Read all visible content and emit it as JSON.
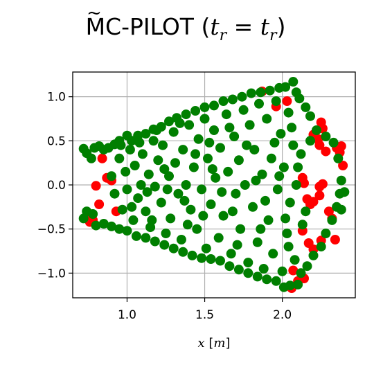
{
  "chart_data": {
    "type": "scatter",
    "title": {
      "prefix": "MC-PILOT (",
      "lhs": "t",
      "lhs_sub": "r",
      "eq": " = ",
      "rhs": "t",
      "rhs_sub": "r",
      "suffix": ")"
    },
    "xlabel": {
      "var": "x",
      "unit": "[m]"
    },
    "ylabel": "",
    "xlim": [
      0.65,
      2.47
    ],
    "ylim": [
      -1.28,
      1.28
    ],
    "xticks": [
      1.0,
      1.5,
      2.0
    ],
    "xtick_labels": [
      "1.0",
      "1.5",
      "2.0"
    ],
    "yticks": [
      1.0,
      0.5,
      0.0,
      -0.5,
      -1.0
    ],
    "ytick_labels": [
      "1.0",
      "0.5",
      "0.0",
      "−0.5",
      "−1.0"
    ],
    "grid": true,
    "legend": "none",
    "series": [
      {
        "color": "#ff0000",
        "points": [
          [
            0.75,
            -0.32
          ],
          [
            0.76,
            -0.42
          ],
          [
            0.78,
            -0.4
          ],
          [
            0.82,
            -0.22
          ],
          [
            0.8,
            -0.01
          ],
          [
            0.84,
            0.3
          ],
          [
            0.87,
            0.08
          ],
          [
            0.9,
            0.05
          ],
          [
            0.93,
            -0.3
          ],
          [
            1.87,
            1.06
          ],
          [
            1.96,
            0.89
          ],
          [
            2.03,
            0.95
          ],
          [
            2.2,
            0.57
          ],
          [
            2.23,
            0.52
          ],
          [
            2.25,
            0.71
          ],
          [
            2.26,
            0.64
          ],
          [
            2.24,
            0.45
          ],
          [
            2.28,
            0.38
          ],
          [
            2.35,
            0.42
          ],
          [
            2.37,
            0.37
          ],
          [
            2.38,
            0.44
          ],
          [
            2.39,
            0.22
          ],
          [
            2.14,
            0.02
          ],
          [
            2.13,
            0.08
          ],
          [
            2.16,
            -0.16
          ],
          [
            2.18,
            -0.22
          ],
          [
            2.2,
            -0.19
          ],
          [
            2.24,
            -0.02
          ],
          [
            2.26,
            0.01
          ],
          [
            2.24,
            -0.12
          ],
          [
            2.3,
            -0.3
          ],
          [
            2.32,
            -0.38
          ],
          [
            2.34,
            -0.62
          ],
          [
            2.13,
            -0.52
          ],
          [
            2.17,
            -0.66
          ],
          [
            2.2,
            -0.73
          ],
          [
            2.25,
            -0.63
          ],
          [
            2.07,
            -0.97
          ],
          [
            2.1,
            -1.09
          ],
          [
            2.14,
            -1.06
          ],
          [
            2.06,
            -1.17
          ]
        ]
      },
      {
        "color": "#007f00",
        "points": [
          [
            0.72,
            0.41
          ],
          [
            0.74,
            0.36
          ],
          [
            0.77,
            0.3
          ],
          [
            0.79,
            0.42
          ],
          [
            0.82,
            0.44
          ],
          [
            0.85,
            0.4
          ],
          [
            0.88,
            0.42
          ],
          [
            0.92,
            0.46
          ],
          [
            0.95,
            0.5
          ],
          [
            1.0,
            0.56
          ],
          [
            1.03,
            0.5
          ],
          [
            1.07,
            0.56
          ],
          [
            1.12,
            0.58
          ],
          [
            1.17,
            0.63
          ],
          [
            1.22,
            0.66
          ],
          [
            1.27,
            0.72
          ],
          [
            1.32,
            0.76
          ],
          [
            1.38,
            0.8
          ],
          [
            1.44,
            0.84
          ],
          [
            1.5,
            0.88
          ],
          [
            1.56,
            0.9
          ],
          [
            1.62,
            0.95
          ],
          [
            1.68,
            0.97
          ],
          [
            1.74,
            1.0
          ],
          [
            1.8,
            1.04
          ],
          [
            1.86,
            1.05
          ],
          [
            1.92,
            1.07
          ],
          [
            1.98,
            1.1
          ],
          [
            2.02,
            1.11
          ],
          [
            2.07,
            1.17
          ],
          [
            2.09,
            1.05
          ],
          [
            2.11,
            0.98
          ],
          [
            0.72,
            -0.38
          ],
          [
            0.74,
            -0.3
          ],
          [
            0.78,
            -0.33
          ],
          [
            0.8,
            -0.46
          ],
          [
            0.85,
            -0.44
          ],
          [
            0.9,
            -0.47
          ],
          [
            0.95,
            -0.5
          ],
          [
            1.0,
            -0.52
          ],
          [
            1.06,
            -0.58
          ],
          [
            1.12,
            -0.6
          ],
          [
            1.18,
            -0.64
          ],
          [
            1.24,
            -0.68
          ],
          [
            1.3,
            -0.72
          ],
          [
            1.36,
            -0.76
          ],
          [
            1.42,
            -0.8
          ],
          [
            1.48,
            -0.83
          ],
          [
            1.54,
            -0.84
          ],
          [
            1.6,
            -0.86
          ],
          [
            1.66,
            -0.92
          ],
          [
            1.72,
            -0.96
          ],
          [
            1.78,
            -1.0
          ],
          [
            1.84,
            -1.04
          ],
          [
            1.9,
            -1.07
          ],
          [
            1.96,
            -1.09
          ],
          [
            2.01,
            -1.16
          ],
          [
            2.05,
            -1.14
          ],
          [
            2.1,
            -1.13
          ],
          [
            2.15,
            0.88
          ],
          [
            2.18,
            0.78
          ],
          [
            2.22,
            0.62
          ],
          [
            2.28,
            0.55
          ],
          [
            2.33,
            0.48
          ],
          [
            2.36,
            0.3
          ],
          [
            2.38,
            0.05
          ],
          [
            2.37,
            -0.1
          ],
          [
            2.35,
            -0.25
          ],
          [
            2.32,
            -0.4
          ],
          [
            2.28,
            -0.55
          ],
          [
            2.25,
            -0.7
          ],
          [
            2.2,
            -0.8
          ],
          [
            2.16,
            -0.92
          ],
          [
            2.12,
            -1.0
          ],
          [
            2.1,
            0.2
          ],
          [
            2.12,
            0.35
          ],
          [
            2.15,
            -0.3
          ],
          [
            2.18,
            0.5
          ],
          [
            2.13,
            -0.45
          ],
          [
            2.4,
            -0.08
          ],
          [
            2.38,
            -0.28
          ],
          [
            0.9,
            0.1
          ],
          [
            0.92,
            -0.1
          ],
          [
            0.95,
            0.3
          ],
          [
            0.97,
            -0.28
          ],
          [
            0.99,
            0.15
          ],
          [
            1.0,
            -0.05
          ],
          [
            1.02,
            0.4
          ],
          [
            1.04,
            -0.4
          ],
          [
            1.05,
            0.22
          ],
          [
            1.07,
            -0.15
          ],
          [
            1.09,
            0.0
          ],
          [
            1.1,
            0.35
          ],
          [
            1.12,
            -0.3
          ],
          [
            1.14,
            0.12
          ],
          [
            1.15,
            -0.48
          ],
          [
            1.17,
            0.5
          ],
          [
            1.18,
            -0.02
          ],
          [
            1.2,
            0.28
          ],
          [
            1.22,
            -0.2
          ],
          [
            1.23,
            0.45
          ],
          [
            1.25,
            -0.55
          ],
          [
            1.27,
            0.1
          ],
          [
            1.28,
            -0.38
          ],
          [
            1.3,
            0.6
          ],
          [
            1.31,
            0.25
          ],
          [
            1.33,
            -0.1
          ],
          [
            1.35,
            -0.62
          ],
          [
            1.36,
            0.4
          ],
          [
            1.38,
            0.0
          ],
          [
            1.4,
            0.68
          ],
          [
            1.41,
            -0.28
          ],
          [
            1.43,
            0.2
          ],
          [
            1.45,
            -0.5
          ],
          [
            1.46,
            0.52
          ],
          [
            1.48,
            -0.05
          ],
          [
            1.5,
            0.75
          ],
          [
            1.51,
            -0.72
          ],
          [
            1.52,
            0.3
          ],
          [
            1.54,
            -0.22
          ],
          [
            1.56,
            0.62
          ],
          [
            1.57,
            0.08
          ],
          [
            1.59,
            -0.6
          ],
          [
            1.6,
            0.42
          ],
          [
            1.62,
            -0.35
          ],
          [
            1.64,
            0.8
          ],
          [
            1.65,
            0.15
          ],
          [
            1.67,
            -0.78
          ],
          [
            1.69,
            0.55
          ],
          [
            1.7,
            -0.1
          ],
          [
            1.72,
            0.28
          ],
          [
            1.73,
            -0.5
          ],
          [
            1.75,
            0.85
          ],
          [
            1.76,
            0.0
          ],
          [
            1.78,
            -0.88
          ],
          [
            1.79,
            0.68
          ],
          [
            1.81,
            -0.25
          ],
          [
            1.82,
            0.4
          ],
          [
            1.84,
            -0.65
          ],
          [
            1.85,
            0.92
          ],
          [
            1.87,
            0.12
          ],
          [
            1.88,
            -0.95
          ],
          [
            1.9,
            0.75
          ],
          [
            1.91,
            -0.4
          ],
          [
            1.93,
            0.3
          ],
          [
            1.94,
            -0.78
          ],
          [
            1.96,
            0.95
          ],
          [
            1.97,
            -0.05
          ],
          [
            1.99,
            0.58
          ],
          [
            2.0,
            -0.98
          ],
          [
            2.01,
            0.2
          ],
          [
            2.03,
            -0.55
          ],
          [
            2.04,
            0.82
          ],
          [
            2.05,
            -0.2
          ],
          [
            2.07,
            0.45
          ],
          [
            2.08,
            -0.85
          ],
          [
            2.09,
            0.0
          ],
          [
            0.96,
            0.45
          ],
          [
            1.03,
            -0.25
          ],
          [
            1.08,
            0.48
          ],
          [
            1.13,
            -0.08
          ],
          [
            1.19,
            0.62
          ],
          [
            1.26,
            -0.05
          ],
          [
            1.34,
            0.7
          ],
          [
            1.39,
            -0.45
          ],
          [
            1.44,
            0.35
          ],
          [
            1.49,
            -0.35
          ],
          [
            1.55,
            0.18
          ],
          [
            1.61,
            -0.08
          ],
          [
            1.66,
            0.65
          ],
          [
            1.71,
            -0.68
          ],
          [
            1.77,
            0.45
          ],
          [
            1.83,
            0.05
          ],
          [
            1.89,
            -0.18
          ],
          [
            1.95,
            0.48
          ],
          [
            2.02,
            -0.38
          ],
          [
            2.06,
            0.65
          ],
          [
            1.16,
            -0.4
          ],
          [
            1.24,
            0.18
          ],
          [
            1.37,
            -0.18
          ],
          [
            1.53,
            0.48
          ],
          [
            1.68,
            -0.3
          ],
          [
            1.86,
            -0.5
          ],
          [
            1.98,
            0.1
          ],
          [
            2.04,
            -0.7
          ]
        ]
      }
    ]
  }
}
